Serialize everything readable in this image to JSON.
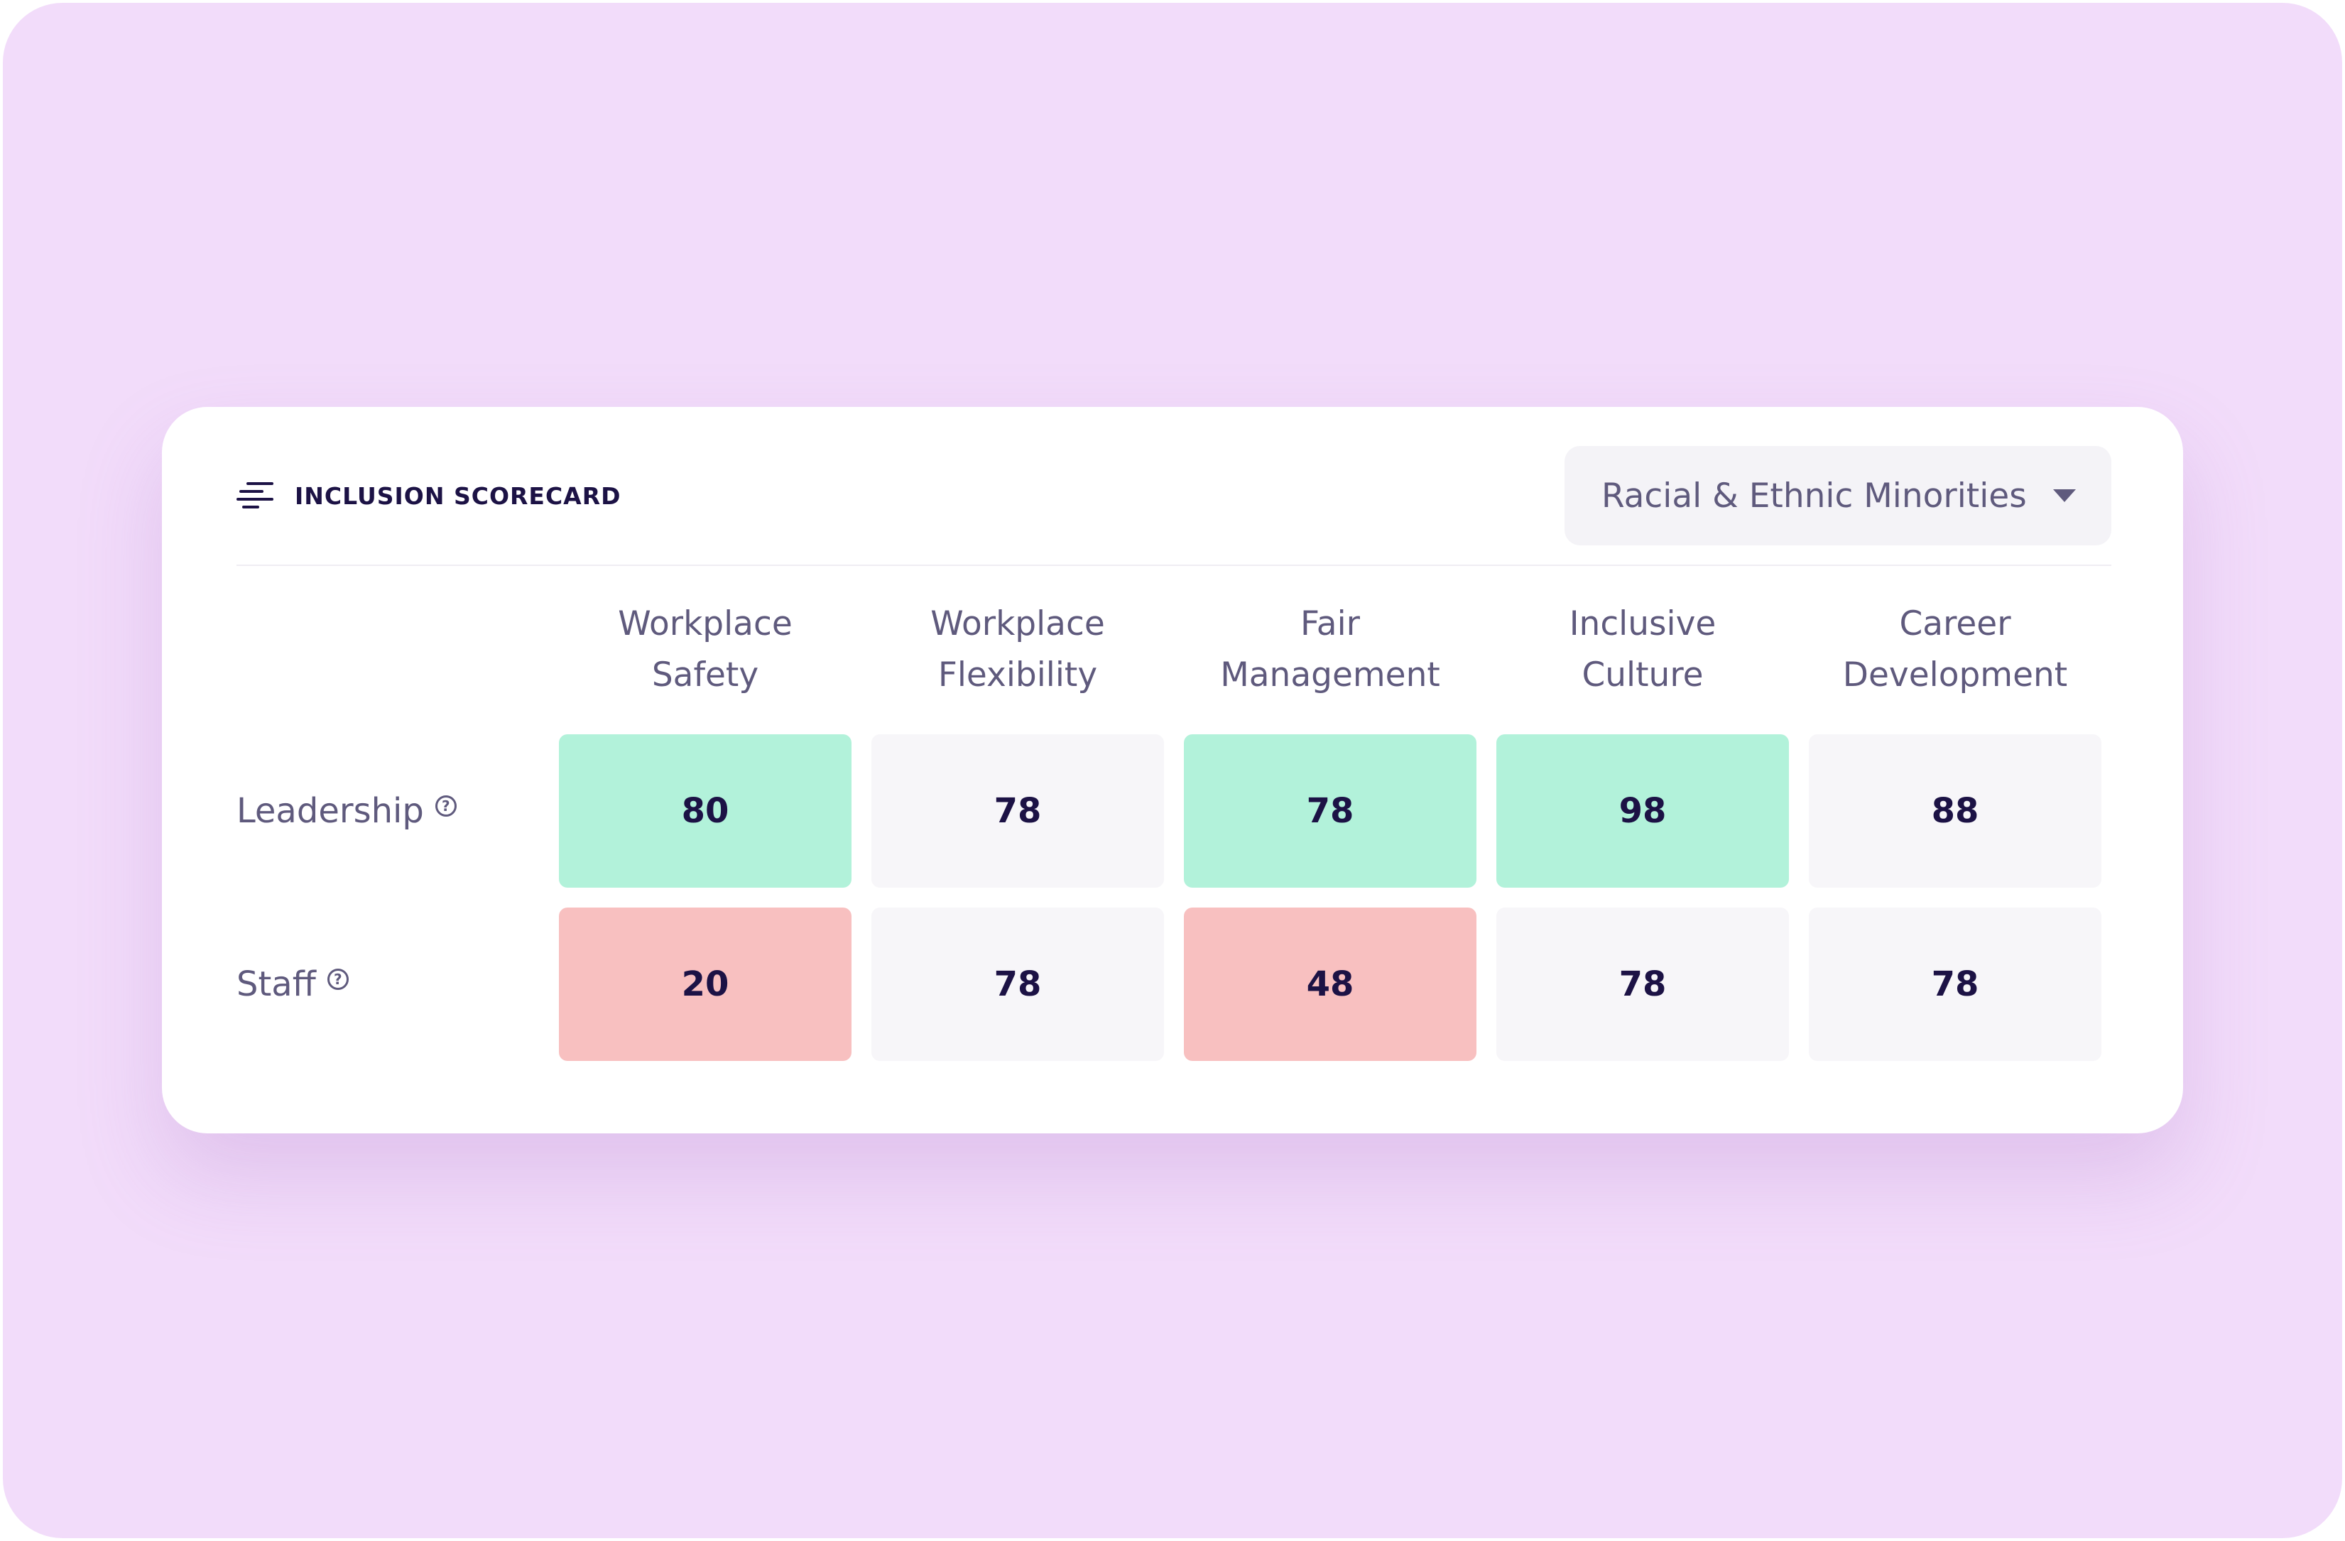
{
  "card": {
    "title": "INCLUSION SCORECARD",
    "title_icon": "scorecard-icon"
  },
  "group_select": {
    "value": "Racial & Ethnic Minorities",
    "icon": "chevron-down-icon"
  },
  "columns": [
    {
      "line1": "Workplace",
      "line2": "Safety"
    },
    {
      "line1": "Workplace",
      "line2": "Flexibility"
    },
    {
      "line1": "Fair",
      "line2": "Management"
    },
    {
      "line1": "Inclusive",
      "line2": "Culture"
    },
    {
      "line1": "Career",
      "line2": "Development"
    }
  ],
  "rows": [
    {
      "label": "Leadership",
      "help_icon": "help-icon",
      "cells": [
        {
          "value": "80",
          "status": "high"
        },
        {
          "value": "78",
          "status": "neutral"
        },
        {
          "value": "78",
          "status": "high"
        },
        {
          "value": "98",
          "status": "high"
        },
        {
          "value": "88",
          "status": "neutral"
        }
      ]
    },
    {
      "label": "Staff",
      "help_icon": "help-icon",
      "cells": [
        {
          "value": "20",
          "status": "low"
        },
        {
          "value": "78",
          "status": "neutral"
        },
        {
          "value": "48",
          "status": "low"
        },
        {
          "value": "78",
          "status": "neutral"
        },
        {
          "value": "78",
          "status": "neutral"
        }
      ]
    }
  ],
  "colors": {
    "backdrop": "#f2dcfa",
    "high": "#b2f2da",
    "low": "#f8c0c0",
    "neutral": "#f7f6f9",
    "text_dark": "#1c1245",
    "text_muted": "#5f5a7d"
  }
}
